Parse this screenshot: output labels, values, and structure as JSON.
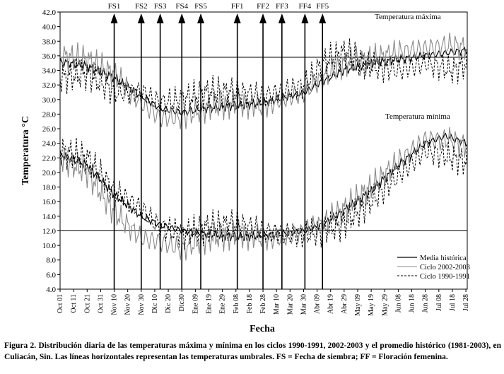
{
  "chart_data": {
    "type": "line",
    "title": "",
    "xlabel": "Fecha",
    "ylabel": "Temperatura °C",
    "ylim": [
      4.0,
      42.0
    ],
    "yticks": [
      "4.0",
      "6.0",
      "8.0",
      "10.0",
      "12.0",
      "14.0",
      "16.0",
      "18.0",
      "20.0",
      "22.0",
      "24.0",
      "26.0",
      "28.0",
      "30.0",
      "32.0",
      "34.0",
      "36.0",
      "38.0",
      "40.0",
      "42.0"
    ],
    "xticks": [
      "Oct 01",
      "Oct 11",
      "Oct 21",
      "Oct 31",
      "Nov 10",
      "Nov 20",
      "Nov 30",
      "Dic 10",
      "Dic 20",
      "Dic30",
      "Ene 09",
      "Ene 19",
      "Ene 29",
      "Feb 08",
      "Feb 18",
      "Feb 28",
      "Mar 10",
      "Mar 20",
      "Mar 30",
      "Abr 09",
      "Abr 19",
      "Abr 29",
      "May 09",
      "May 19",
      "May 29",
      "Jun 08",
      "Jun 18",
      "Jun 28",
      "Jul 08",
      "Jul 18",
      "Jul 28"
    ],
    "thresholds": [
      35.8,
      12.0
    ],
    "annotations": {
      "max_label": "Temperatura máxima",
      "min_label": "Temperatura mínima"
    },
    "events": [
      {
        "label": "FS1",
        "day": 40
      },
      {
        "label": "FS2",
        "day": 60
      },
      {
        "label": "FS3",
        "day": 74
      },
      {
        "label": "FS4",
        "day": 90
      },
      {
        "label": "FS5",
        "day": 104
      },
      {
        "label": "FF1",
        "day": 131
      },
      {
        "label": "FF2",
        "day": 150
      },
      {
        "label": "FF3",
        "day": 164
      },
      {
        "label": "FF4",
        "day": 181
      },
      {
        "label": "FF5",
        "day": 194
      }
    ],
    "legend": {
      "placement": "bottom-right",
      "entries": [
        "Media histórica",
        "Ciclo 2002-2003",
        "Ciclo 1990-1991"
      ]
    },
    "series": [
      {
        "name": "Media histórica",
        "style": "solid-black",
        "max": [
          [
            0,
            35.2
          ],
          [
            20,
            34.6
          ],
          [
            40,
            33.0
          ],
          [
            60,
            30.5
          ],
          [
            74,
            28.8
          ],
          [
            90,
            28.2
          ],
          [
            110,
            28.8
          ],
          [
            131,
            29.2
          ],
          [
            150,
            29.5
          ],
          [
            164,
            30.2
          ],
          [
            181,
            31.0
          ],
          [
            194,
            32.5
          ],
          [
            210,
            34.0
          ],
          [
            230,
            35.0
          ],
          [
            250,
            35.5
          ],
          [
            270,
            36.0
          ],
          [
            290,
            36.5
          ],
          [
            301,
            36.8
          ]
        ],
        "min": [
          [
            0,
            22.5
          ],
          [
            20,
            21.0
          ],
          [
            30,
            19.0
          ],
          [
            40,
            17.0
          ],
          [
            50,
            15.5
          ],
          [
            60,
            14.0
          ],
          [
            74,
            12.8
          ],
          [
            90,
            12.0
          ],
          [
            110,
            11.5
          ],
          [
            131,
            11.2
          ],
          [
            150,
            11.3
          ],
          [
            164,
            11.6
          ],
          [
            181,
            12.0
          ],
          [
            194,
            12.8
          ],
          [
            210,
            14.8
          ],
          [
            230,
            17.5
          ],
          [
            250,
            21.0
          ],
          [
            270,
            24.0
          ],
          [
            285,
            25.0
          ],
          [
            301,
            24.0
          ]
        ]
      },
      {
        "name": "Ciclo 2002-2003",
        "style": "solid-gray",
        "max": [
          [
            0,
            36.0
          ],
          [
            20,
            35.5
          ],
          [
            40,
            33.5
          ],
          [
            60,
            29.5
          ],
          [
            74,
            27.5
          ],
          [
            90,
            27.5
          ],
          [
            110,
            29.0
          ],
          [
            131,
            29.5
          ],
          [
            150,
            29.0
          ],
          [
            164,
            30.0
          ],
          [
            181,
            31.0
          ],
          [
            194,
            33.0
          ],
          [
            210,
            35.0
          ],
          [
            230,
            35.5
          ],
          [
            250,
            36.5
          ],
          [
            270,
            37.0
          ],
          [
            290,
            37.5
          ],
          [
            301,
            37.0
          ]
        ],
        "min": [
          [
            0,
            22.0
          ],
          [
            20,
            20.0
          ],
          [
            40,
            14.5
          ],
          [
            60,
            11.0
          ],
          [
            74,
            10.5
          ],
          [
            90,
            9.5
          ],
          [
            110,
            11.0
          ],
          [
            131,
            11.5
          ],
          [
            150,
            11.0
          ],
          [
            164,
            11.0
          ],
          [
            181,
            12.0
          ],
          [
            194,
            13.0
          ],
          [
            210,
            15.0
          ],
          [
            230,
            18.0
          ],
          [
            250,
            21.5
          ],
          [
            270,
            24.5
          ],
          [
            290,
            24.5
          ],
          [
            301,
            23.5
          ]
        ]
      },
      {
        "name": "Ciclo 1990-1991",
        "style": "dashed-black",
        "max": [
          [
            0,
            33.0
          ],
          [
            20,
            33.5
          ],
          [
            40,
            31.0
          ],
          [
            60,
            31.0
          ],
          [
            74,
            29.5
          ],
          [
            90,
            30.0
          ],
          [
            110,
            31.0
          ],
          [
            131,
            31.0
          ],
          [
            150,
            30.5
          ],
          [
            164,
            31.0
          ],
          [
            181,
            32.0
          ],
          [
            194,
            35.0
          ],
          [
            210,
            36.5
          ],
          [
            230,
            34.5
          ],
          [
            250,
            34.0
          ],
          [
            270,
            35.0
          ],
          [
            290,
            34.0
          ],
          [
            301,
            35.0
          ]
        ],
        "min": [
          [
            0,
            23.0
          ],
          [
            20,
            22.0
          ],
          [
            40,
            17.5
          ],
          [
            60,
            15.0
          ],
          [
            74,
            12.5
          ],
          [
            90,
            11.5
          ],
          [
            110,
            12.5
          ],
          [
            131,
            13.0
          ],
          [
            150,
            12.0
          ],
          [
            164,
            11.5
          ],
          [
            181,
            11.5
          ],
          [
            194,
            12.0
          ],
          [
            210,
            13.0
          ],
          [
            230,
            16.0
          ],
          [
            250,
            19.5
          ],
          [
            270,
            23.0
          ],
          [
            290,
            22.0
          ],
          [
            301,
            21.5
          ]
        ]
      }
    ]
  },
  "caption": {
    "figure_label": "Figura 2.",
    "text": "Distribución diaria de las temperaturas máxima y mínima en los ciclos 1990-1991, 2002-2003 y el promedio histórico (1981-2003), en Culiacán, Sin. Las líneas horizontales representan las temperaturas umbrales. FS = Fecha de siembra; FF = Floración femenina."
  }
}
